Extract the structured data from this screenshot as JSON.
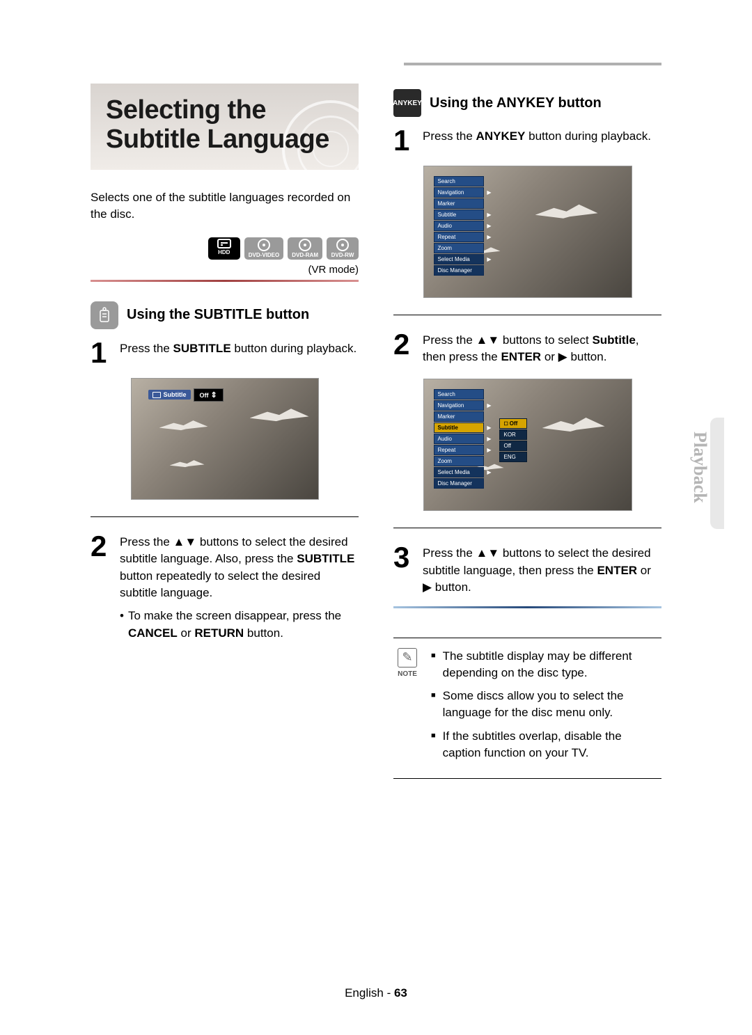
{
  "title": "Selecting the Subtitle Language",
  "intro": "Selects one of the subtitle languages recorded on the disc.",
  "discBadges": [
    "HDD",
    "DVD-VIDEO",
    "DVD-RAM",
    "DVD-RW"
  ],
  "vrMode": "(VR mode)",
  "left": {
    "heading": "Using the SUBTITLE button",
    "step1_pre": "Press the ",
    "step1_bold": "SUBTITLE",
    "step1_post": " button during playback.",
    "osd_label": "Subtitle",
    "osd_value": "Off",
    "step2_a": "Press the ▲▼ buttons to select the desired subtitle language. Also, press the ",
    "step2_b": "SUBTITLE",
    "step2_c": " button repeatedly to select the desired subtitle language.",
    "step2_bullet_a": "To make the screen disappear, press the ",
    "step2_bullet_b": "CANCEL",
    "step2_bullet_or": " or ",
    "step2_bullet_c": "RETURN",
    "step2_bullet_d": " button."
  },
  "right": {
    "badge": "ANYKEY",
    "heading": "Using the ANYKEY button",
    "step1_pre": "Press the ",
    "step1_bold": "ANYKEY",
    "step1_post": " button during playback.",
    "menu": [
      "Search",
      "Navigation",
      "Marker",
      "Subtitle",
      "Audio",
      "Repeat",
      "Zoom",
      "Select Media",
      "Disc Manager"
    ],
    "menu_arrows": [
      false,
      true,
      false,
      true,
      true,
      true,
      false,
      true,
      false
    ],
    "step2_a": "Press the ▲▼ buttons to select ",
    "step2_b": "Subtitle",
    "step2_c": ", then press the ",
    "step2_d": "ENTER",
    "step2_e": " or ▶ button.",
    "submenu_selected_index": 3,
    "submenu_options": [
      "Off",
      "KOR",
      "Off",
      "ENG"
    ],
    "step3_a": "Press the ▲▼ buttons to select the desired subtitle language, then press the ",
    "step3_b": "ENTER",
    "step3_c": " or ▶ button."
  },
  "note": {
    "label": "NOTE",
    "items": [
      "The subtitle display may be different depending on the disc type.",
      "Some discs allow you to select the language for the disc menu only.",
      "If the subtitles overlap, disable the caption function on your TV."
    ]
  },
  "sideTab": "Playback",
  "footer_lang": "English",
  "footer_sep": " - ",
  "footer_page": "63"
}
